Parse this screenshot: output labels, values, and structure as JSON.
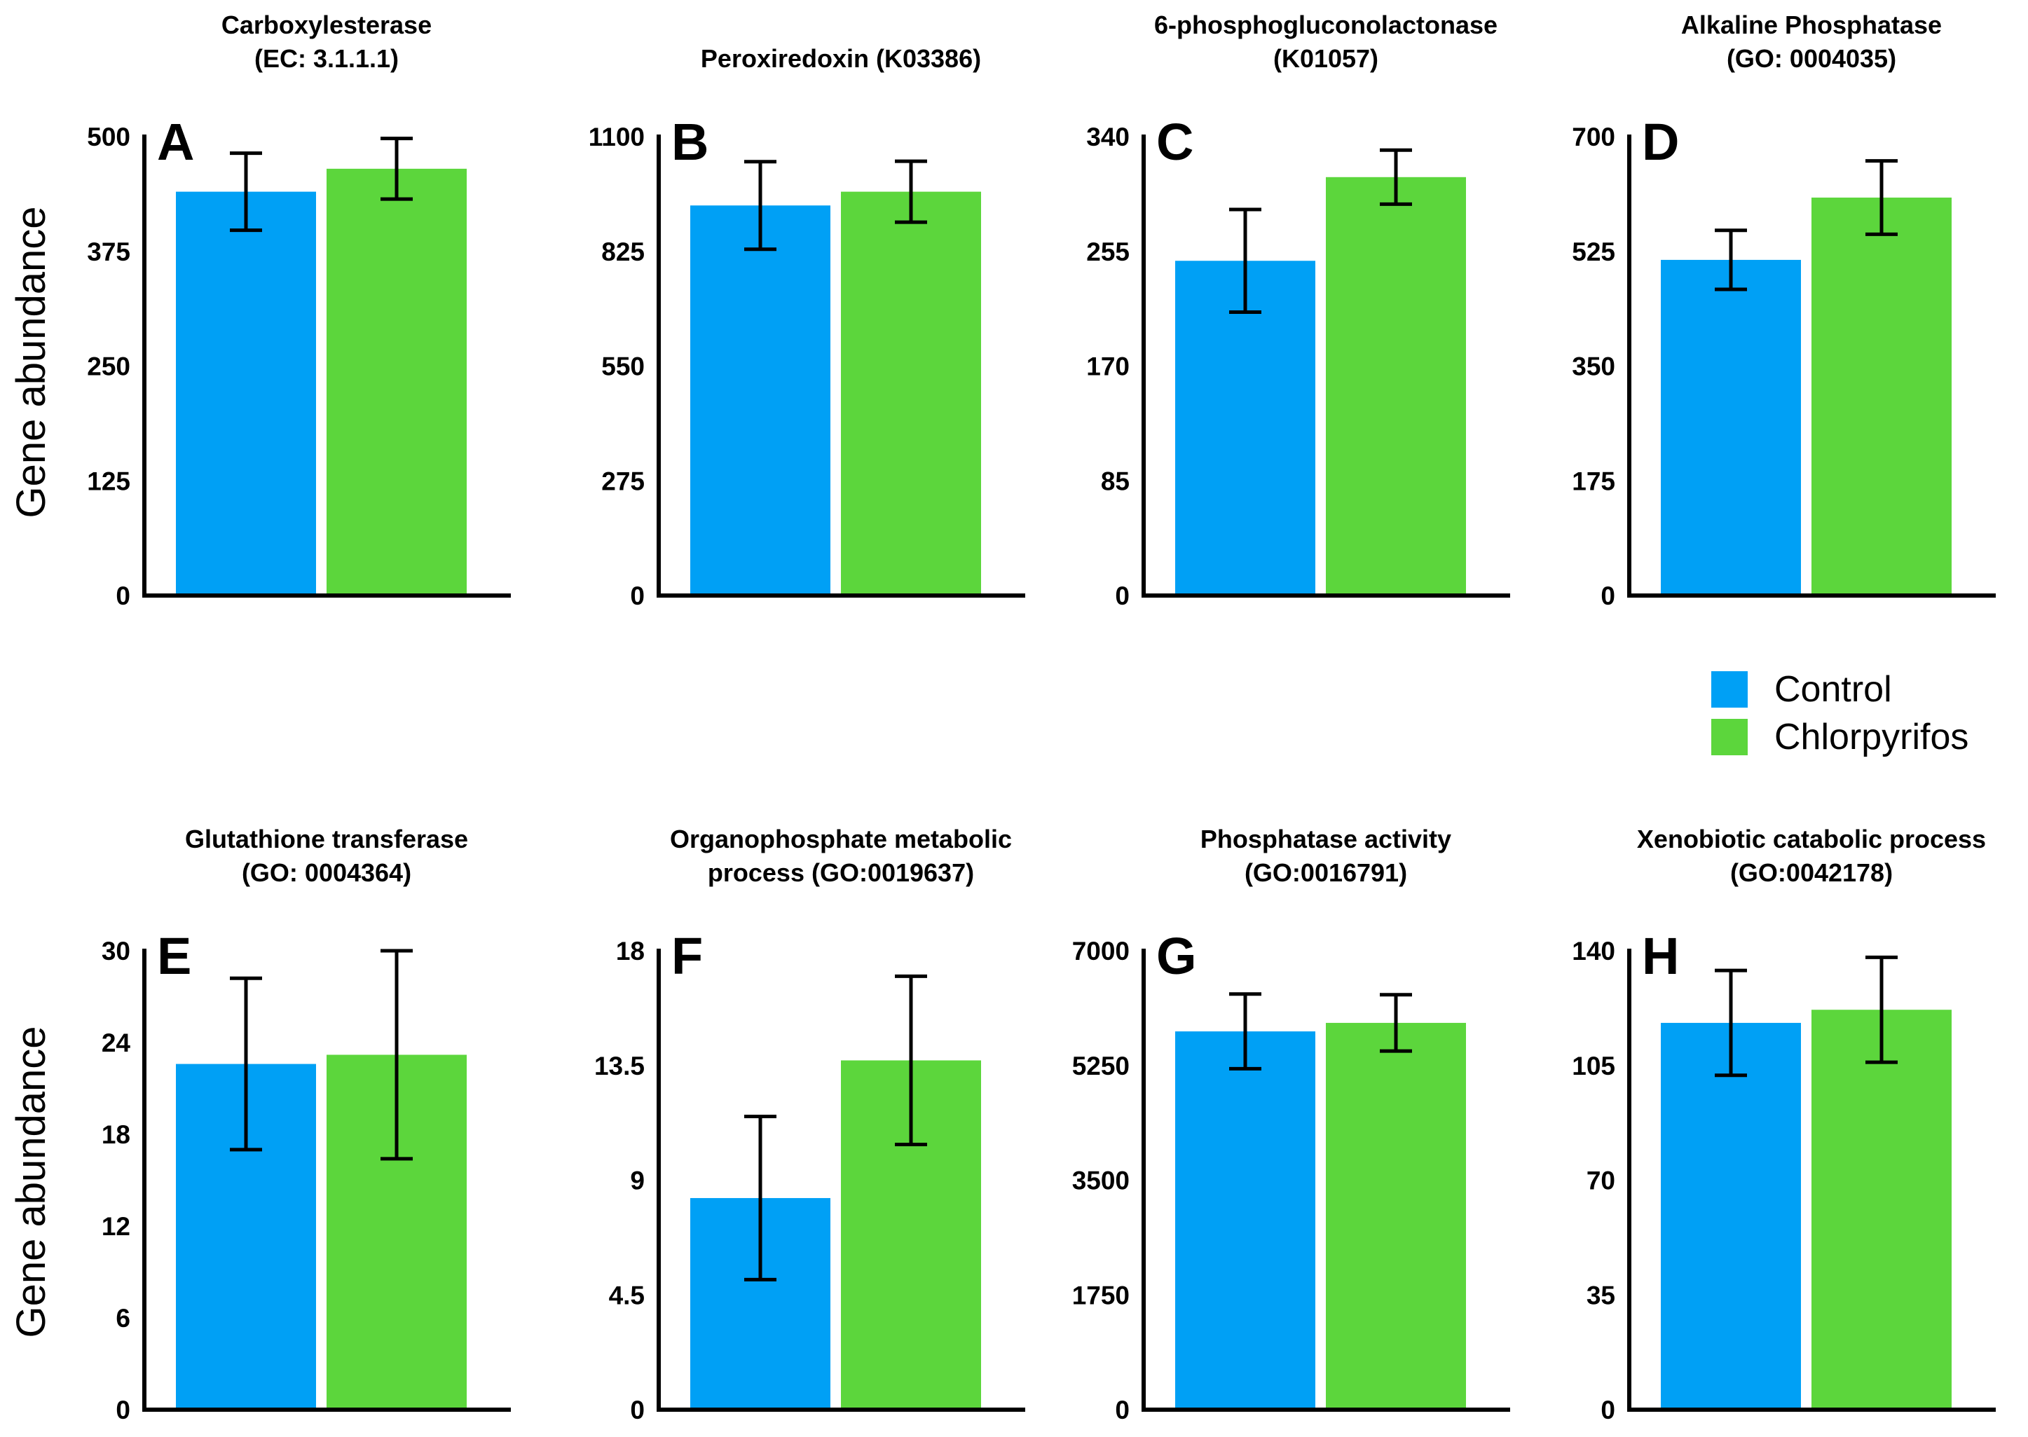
{
  "figure": {
    "background": "#ffffff",
    "y_axis_label": "Gene abundance",
    "legend": {
      "position": "middle-right",
      "items": [
        {
          "label": "Control",
          "color": "#00A0F5"
        },
        {
          "label": "Chlorpyrifos",
          "color": "#5CD63C"
        }
      ]
    }
  },
  "chart_data": [
    {
      "panel": "A",
      "row": 1,
      "type": "bar",
      "grid": false,
      "title_lines": [
        "Carboxylesterase",
        "(EC: 3.1.1.1)"
      ],
      "ylabel": "Gene abundance",
      "ylim": [
        0,
        500
      ],
      "yticks": [
        0,
        125,
        250,
        375,
        500
      ],
      "categories": [
        "Control",
        "Chlorpyrifos"
      ],
      "series": [
        {
          "name": "Control",
          "value": 440,
          "error": 42
        },
        {
          "name": "Chlorpyrifos",
          "value": 465,
          "error": 33
        }
      ]
    },
    {
      "panel": "B",
      "row": 1,
      "type": "bar",
      "grid": false,
      "title_lines": [
        "Peroxiredoxin (K03386)"
      ],
      "ylabel": "Gene abundance",
      "ylim": [
        0,
        1100
      ],
      "yticks": [
        0,
        275,
        550,
        825,
        1100
      ],
      "categories": [
        "Control",
        "Chlorpyrifos"
      ],
      "series": [
        {
          "name": "Control",
          "value": 935,
          "error": 105
        },
        {
          "name": "Chlorpyrifos",
          "value": 968,
          "error": 73
        }
      ]
    },
    {
      "panel": "C",
      "row": 1,
      "type": "bar",
      "grid": false,
      "title_lines": [
        "6-phosphogluconolactonase",
        "(K01057)"
      ],
      "ylabel": "Gene abundance",
      "ylim": [
        0,
        340
      ],
      "yticks": [
        0,
        85,
        170,
        255,
        340
      ],
      "categories": [
        "Control",
        "Chlorpyrifos"
      ],
      "series": [
        {
          "name": "Control",
          "value": 248,
          "error": 38
        },
        {
          "name": "Chlorpyrifos",
          "value": 310,
          "error": 20
        }
      ]
    },
    {
      "panel": "D",
      "row": 1,
      "type": "bar",
      "grid": false,
      "title_lines": [
        "Alkaline Phosphatase",
        "(GO: 0004035)"
      ],
      "ylabel": "Gene abundance",
      "ylim": [
        0,
        700
      ],
      "yticks": [
        0,
        175,
        350,
        525,
        700
      ],
      "categories": [
        "Control",
        "Chlorpyrifos"
      ],
      "series": [
        {
          "name": "Control",
          "value": 512,
          "error": 45
        },
        {
          "name": "Chlorpyrifos",
          "value": 607,
          "error": 56
        }
      ]
    },
    {
      "panel": "E",
      "row": 2,
      "type": "bar",
      "grid": false,
      "title_lines": [
        "Glutathione transferase",
        "(GO: 0004364)"
      ],
      "ylabel": "Gene abundance",
      "ylim": [
        0,
        30
      ],
      "yticks": [
        0,
        6,
        12,
        18,
        24,
        30
      ],
      "categories": [
        "Control",
        "Chlorpyrifos"
      ],
      "series": [
        {
          "name": "Control",
          "value": 22.6,
          "error": 5.6
        },
        {
          "name": "Chlorpyrifos",
          "value": 23.2,
          "error": 6.8
        }
      ]
    },
    {
      "panel": "F",
      "row": 2,
      "type": "bar",
      "grid": false,
      "title_lines": [
        "Organophosphate metabolic",
        "process (GO:0019637)"
      ],
      "ylabel": "Gene abundance",
      "ylim": [
        0,
        18
      ],
      "yticks": [
        0,
        4.5,
        9,
        13.5,
        18
      ],
      "categories": [
        "Control",
        "Chlorpyrifos"
      ],
      "series": [
        {
          "name": "Control",
          "value": 8.3,
          "error": 3.2
        },
        {
          "name": "Chlorpyrifos",
          "value": 13.7,
          "error": 3.3
        }
      ]
    },
    {
      "panel": "G",
      "row": 2,
      "type": "bar",
      "grid": false,
      "title_lines": [
        "Phosphatase activity",
        "(GO:0016791)"
      ],
      "ylabel": "Gene abundance",
      "ylim": [
        0,
        7000
      ],
      "yticks": [
        0,
        1750,
        3500,
        5250,
        7000
      ],
      "categories": [
        "Control",
        "Chlorpyrifos"
      ],
      "series": [
        {
          "name": "Control",
          "value": 5770,
          "error": 570
        },
        {
          "name": "Chlorpyrifos",
          "value": 5900,
          "error": 430
        }
      ]
    },
    {
      "panel": "H",
      "row": 2,
      "type": "bar",
      "grid": false,
      "title_lines": [
        "Xenobiotic catabolic process",
        "(GO:0042178)"
      ],
      "ylabel": "Gene abundance",
      "ylim": [
        0,
        140
      ],
      "yticks": [
        0,
        35,
        70,
        105,
        140
      ],
      "categories": [
        "Control",
        "Chlorpyrifos"
      ],
      "series": [
        {
          "name": "Control",
          "value": 118,
          "error": 16
        },
        {
          "name": "Chlorpyrifos",
          "value": 122,
          "error": 16
        }
      ]
    }
  ]
}
